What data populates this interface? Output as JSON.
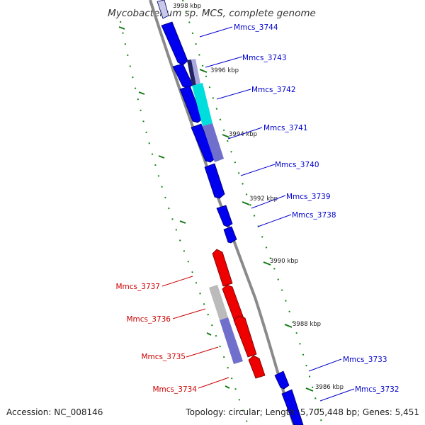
{
  "title": "Mycobacterium sp. MCS, complete genome",
  "footer": {
    "accession": "Accession: NC_008146",
    "summary": "Topology: circular; Length: 5,705,448 bp; Genes: 5,451"
  },
  "colors": {
    "forward_gene": "#0000ee",
    "reverse_gene": "#ee0000",
    "cyan_feature": "#00dddd",
    "purple_feature": "#7070cc",
    "grey_feature": "#bbbbbb",
    "backbone": "#888888",
    "tick": "#117711",
    "forward_label": "#0000cc",
    "reverse_label": "#cc0000"
  },
  "scale_labels": [
    "3998 kbp",
    "3996 kbp",
    "3994 kbp",
    "3992 kbp",
    "3990 kbp",
    "3988 kbp",
    "3986 kbp"
  ],
  "forward_genes": [
    "Mmcs_3744",
    "Mmcs_3743",
    "Mmcs_3742",
    "Mmcs_3741",
    "Mmcs_3740",
    "Mmcs_3739",
    "Mmcs_3738",
    "Mmcs_3733",
    "Mmcs_3732"
  ],
  "reverse_genes": [
    "Mmcs_3737",
    "Mmcs_3736",
    "Mmcs_3735",
    "Mmcs_3734"
  ]
}
